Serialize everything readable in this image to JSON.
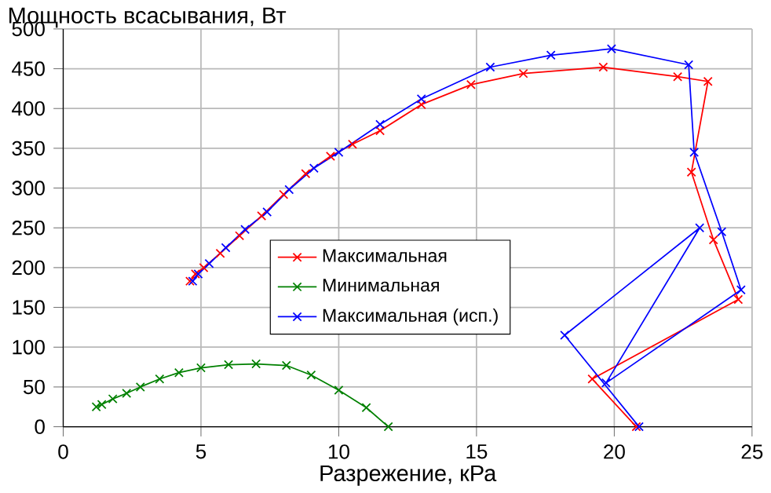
{
  "chart_data": {
    "type": "line",
    "xlabel": "Разрежение, кРа",
    "ylabel": "Мощность всасывания, Вт",
    "xlim": [
      0,
      25
    ],
    "xticks": [
      0,
      5,
      10,
      15,
      20,
      25
    ],
    "ylim": [
      0,
      500
    ],
    "yticks": [
      0,
      50,
      100,
      150,
      200,
      250,
      300,
      350,
      400,
      450,
      500
    ],
    "grid": true,
    "legend": "center",
    "marker": "cross",
    "series": [
      {
        "name": "Максимальная",
        "color": "#ff0000",
        "x": [
          4.6,
          4.8,
          5.1,
          5.7,
          6.4,
          7.2,
          8.0,
          8.8,
          9.7,
          10.5,
          11.5,
          13.0,
          14.8,
          16.7,
          19.6,
          22.3,
          23.4,
          22.8,
          23.6,
          24.5,
          19.2,
          20.8
        ],
        "values": [
          183,
          192,
          200,
          218,
          240,
          265,
          292,
          318,
          340,
          355,
          372,
          405,
          430,
          444,
          452,
          440,
          434,
          320,
          235,
          160,
          60,
          0
        ]
      },
      {
        "name": "Минимальная",
        "color": "#008000",
        "x": [
          1.2,
          1.4,
          1.8,
          2.3,
          2.8,
          3.5,
          4.2,
          5.0,
          6.0,
          7.0,
          8.1,
          9.0,
          10.0,
          11.0,
          11.8
        ],
        "values": [
          25,
          28,
          35,
          42,
          50,
          60,
          68,
          74,
          78,
          79,
          77,
          65,
          46,
          24,
          0
        ]
      },
      {
        "name": "Максимальная (исп.)",
        "color": "#0000ff",
        "x": [
          4.7,
          4.9,
          5.3,
          5.9,
          6.6,
          7.4,
          8.2,
          9.1,
          10.0,
          11.5,
          13.0,
          15.5,
          17.7,
          19.9,
          22.7,
          22.9,
          23.9,
          24.6,
          19.7,
          23.1,
          18.2,
          20.9
        ],
        "values": [
          183,
          192,
          205,
          225,
          248,
          270,
          298,
          325,
          345,
          380,
          412,
          452,
          467,
          475,
          455,
          345,
          245,
          172,
          55,
          250,
          115,
          0
        ]
      }
    ]
  }
}
